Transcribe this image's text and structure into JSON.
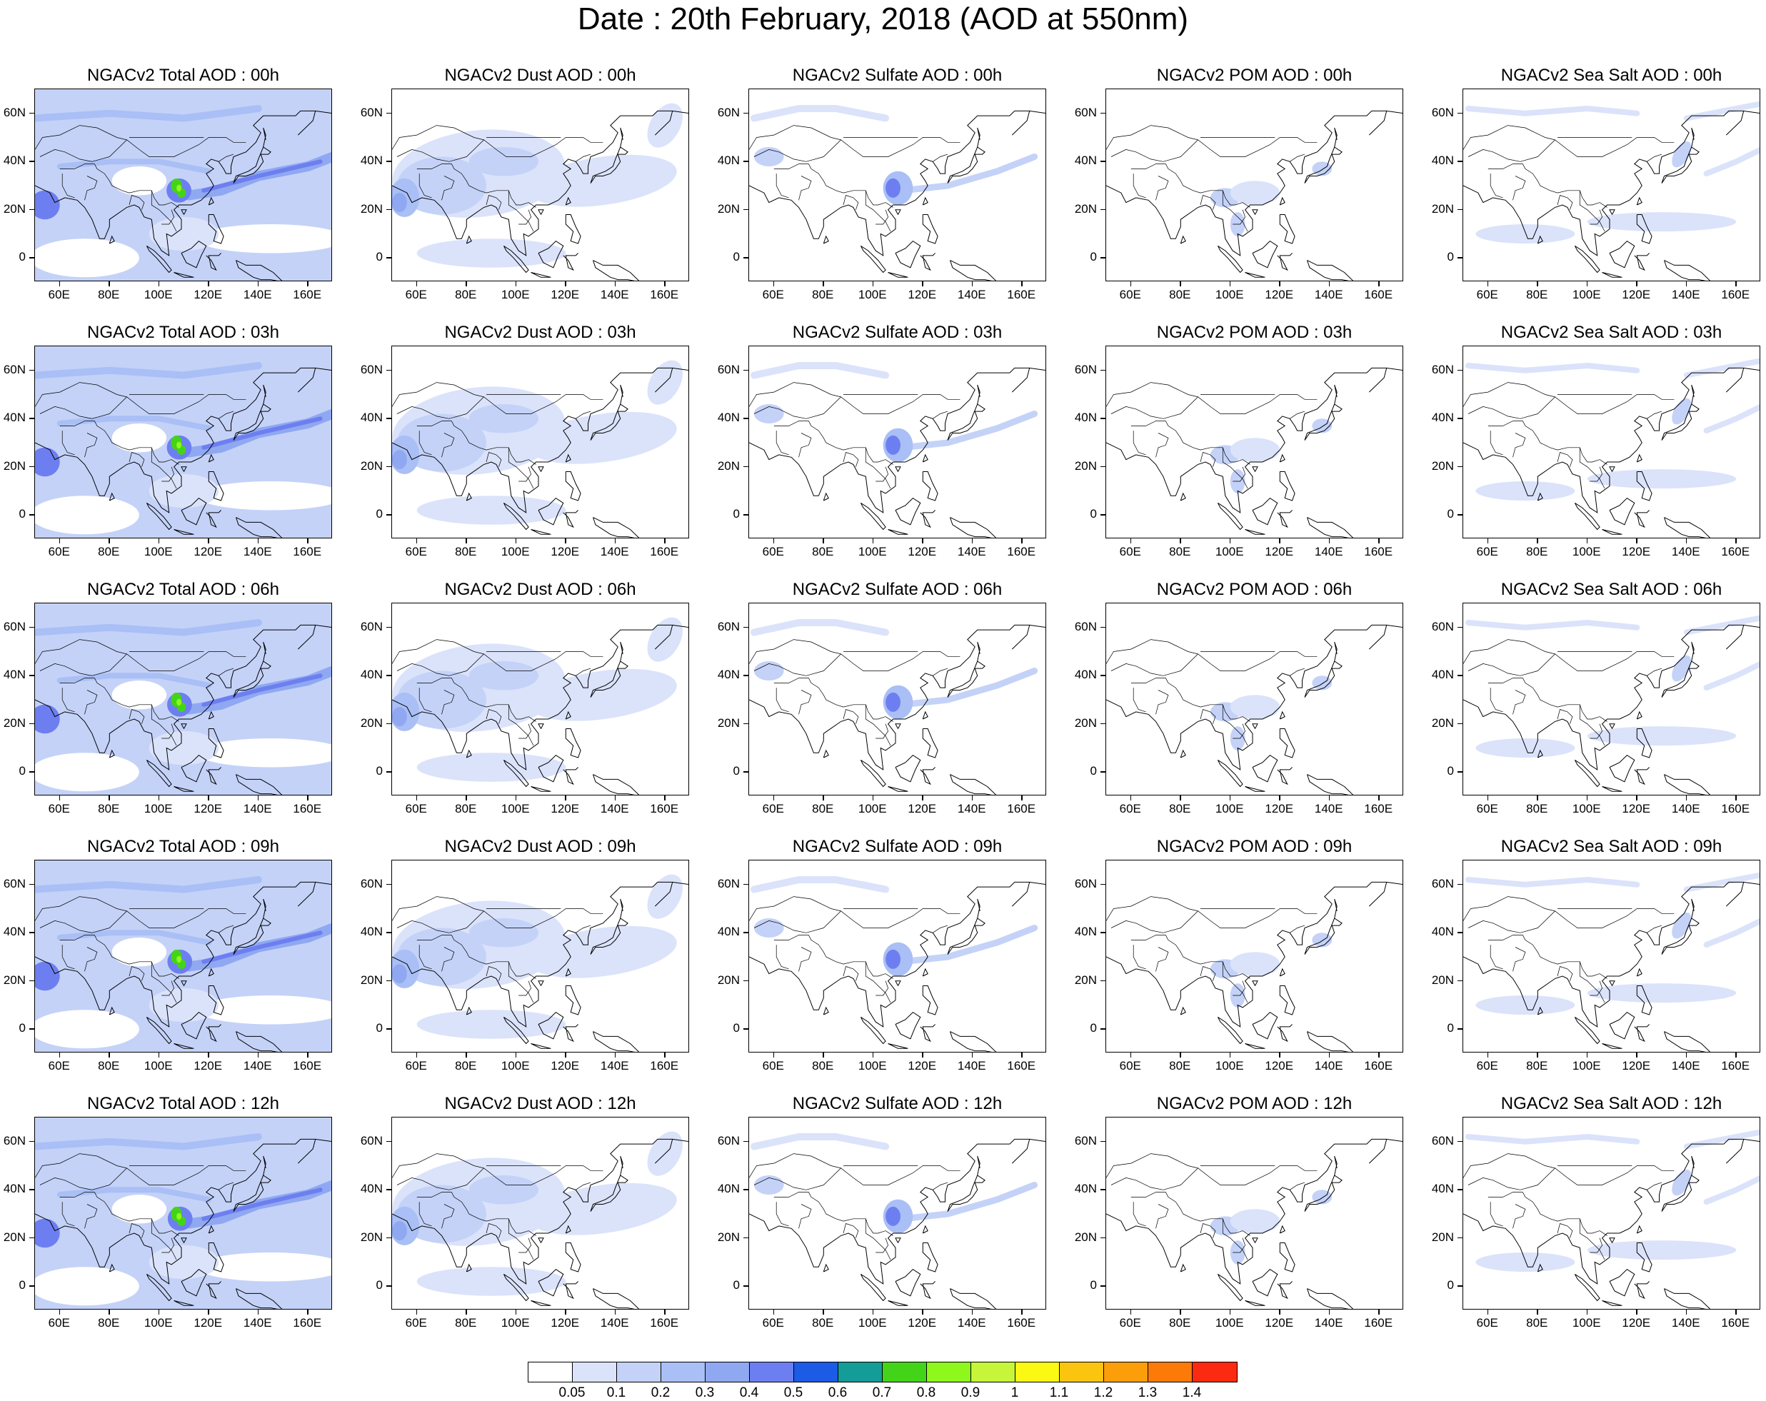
{
  "title": "Date : 20th February, 2018 (AOD at 550nm)",
  "x_ticks": [
    "60E",
    "80E",
    "100E",
    "120E",
    "140E",
    "160E"
  ],
  "y_ticks": [
    "60N",
    "40N",
    "20N",
    "0"
  ],
  "panels": [
    [
      {
        "title": "NGACv2 Total AOD : 00h",
        "field": "total"
      },
      {
        "title": "NGACv2 Dust AOD : 00h",
        "field": "dust"
      },
      {
        "title": "NGACv2 Sulfate AOD : 00h",
        "field": "sulfate"
      },
      {
        "title": "NGACv2 POM AOD : 00h",
        "field": "pom"
      },
      {
        "title": "NGACv2 Sea Salt AOD : 00h",
        "field": "seasalt"
      }
    ],
    [
      {
        "title": "NGACv2 Total AOD : 03h",
        "field": "total"
      },
      {
        "title": "NGACv2 Dust AOD : 03h",
        "field": "dust"
      },
      {
        "title": "NGACv2 Sulfate AOD : 03h",
        "field": "sulfate"
      },
      {
        "title": "NGACv2 POM AOD : 03h",
        "field": "pom"
      },
      {
        "title": "NGACv2 Sea Salt AOD : 03h",
        "field": "seasalt"
      }
    ],
    [
      {
        "title": "NGACv2 Total AOD : 06h",
        "field": "total"
      },
      {
        "title": "NGACv2 Dust AOD : 06h",
        "field": "dust"
      },
      {
        "title": "NGACv2 Sulfate AOD : 06h",
        "field": "sulfate"
      },
      {
        "title": "NGACv2 POM AOD : 06h",
        "field": "pom"
      },
      {
        "title": "NGACv2 Sea Salt AOD : 06h",
        "field": "seasalt"
      }
    ],
    [
      {
        "title": "NGACv2 Total AOD : 09h",
        "field": "total"
      },
      {
        "title": "NGACv2 Dust AOD : 09h",
        "field": "dust"
      },
      {
        "title": "NGACv2 Sulfate AOD : 09h",
        "field": "sulfate"
      },
      {
        "title": "NGACv2 POM AOD : 09h",
        "field": "pom"
      },
      {
        "title": "NGACv2 Sea Salt  AOD : 09h",
        "field": "seasalt"
      }
    ],
    [
      {
        "title": "NGACv2 Total AOD  : 12h",
        "field": "total"
      },
      {
        "title": "NGACv2 Dust AOD : 12h",
        "field": "dust"
      },
      {
        "title": "NGACv2 Sulfate AOD : 12h",
        "field": "sulfate"
      },
      {
        "title": "NGACv2 POM  AOD : 12h",
        "field": "pom"
      },
      {
        "title": "NGACv2 Sea Salt  AOD : 12h",
        "field": "seasalt"
      }
    ]
  ],
  "colorbar": {
    "labels": [
      "0.05",
      "0.1",
      "0.2",
      "0.3",
      "0.4",
      "0.5",
      "0.6",
      "0.7",
      "0.8",
      "0.9",
      "1",
      "1.1",
      "1.2",
      "1.3",
      "1.4"
    ],
    "colors": [
      "#ffffff",
      "#dbe3fb",
      "#c4d2f8",
      "#a9bff5",
      "#8fa8f1",
      "#6d7ff0",
      "#1c5be6",
      "#139c98",
      "#43d419",
      "#8ef71b",
      "#c6f53a",
      "#fbf814",
      "#fbc50f",
      "#fb9e0a",
      "#fb7a08",
      "#fb2a10"
    ]
  }
}
